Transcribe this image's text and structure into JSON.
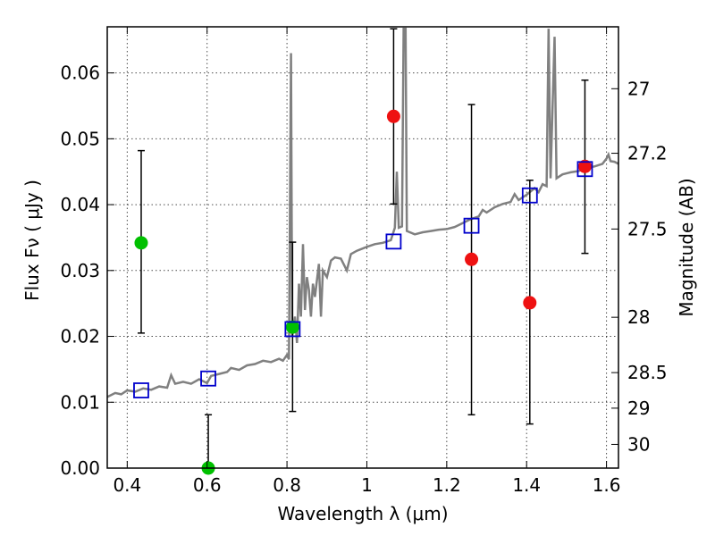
{
  "chart_data": {
    "type": "scatter",
    "xlabel": "Wavelength  λ (μm)",
    "ylabel": "Flux  Fν  ( μJy )",
    "y2label": "Magnitude (AB)",
    "xlim": [
      0.35,
      1.63
    ],
    "ylim": [
      0.0,
      0.067
    ],
    "x_ticks": [
      0.4,
      0.6,
      0.8,
      1.0,
      1.2,
      1.4,
      1.6
    ],
    "x_tick_labels": [
      "0.4",
      "0.6",
      "0.8",
      "1",
      "1.2",
      "1.4",
      "1.6"
    ],
    "y_ticks": [
      0.0,
      0.01,
      0.02,
      0.03,
      0.04,
      0.05,
      0.06
    ],
    "y_tick_labels": [
      "0.00",
      "0.01",
      "0.02",
      "0.03",
      "0.04",
      "0.05",
      "0.06"
    ],
    "y2_ticks": [
      {
        "flux": 0.0576,
        "label": "27"
      },
      {
        "flux": 0.0478,
        "label": "27.2"
      },
      {
        "flux": 0.0363,
        "label": "27.5"
      },
      {
        "flux": 0.0229,
        "label": "28"
      },
      {
        "flux": 0.0145,
        "label": "28.5"
      },
      {
        "flux": 0.0091,
        "label": "29"
      },
      {
        "flux": 0.0036,
        "label": "30"
      }
    ],
    "grid": true,
    "colors": {
      "model": "#808080",
      "green_points": "#00c000",
      "red_points": "#ee1111",
      "squares": "#0000cc",
      "errorbars": "#000000"
    },
    "series": [
      {
        "marker": "circle",
        "color": "#00c000",
        "points": [
          {
            "x": 0.435,
            "y": 0.0342,
            "yerr_low": 0.0205,
            "yerr_high": 0.0482
          },
          {
            "x": 0.603,
            "y": 0.0,
            "yerr_low": 0.0,
            "yerr_high": 0.0081
          },
          {
            "x": 0.814,
            "y": 0.0214,
            "yerr_low": 0.0086,
            "yerr_high": 0.0343
          }
        ]
      },
      {
        "marker": "circle",
        "color": "#ee1111",
        "points": [
          {
            "x": 1.067,
            "y": 0.0534,
            "yerr_low": 0.0401,
            "yerr_high": 0.0667
          },
          {
            "x": 1.262,
            "y": 0.0317,
            "yerr_low": 0.0081,
            "yerr_high": 0.0552
          },
          {
            "x": 1.408,
            "y": 0.0251,
            "yerr_low": 0.0067,
            "yerr_high": 0.0437
          },
          {
            "x": 1.546,
            "y": 0.0458,
            "yerr_low": 0.0326,
            "yerr_high": 0.0589
          }
        ]
      },
      {
        "marker": "open-square",
        "color": "#0000cc",
        "points": [
          {
            "x": 0.435,
            "y": 0.0118
          },
          {
            "x": 0.603,
            "y": 0.0136
          },
          {
            "x": 0.814,
            "y": 0.0211
          },
          {
            "x": 1.067,
            "y": 0.0344
          },
          {
            "x": 1.262,
            "y": 0.0368
          },
          {
            "x": 1.408,
            "y": 0.0414
          },
          {
            "x": 1.546,
            "y": 0.0454
          }
        ]
      },
      {
        "marker": "line",
        "color": "#808080",
        "points": [
          {
            "x": 0.35,
            "y": 0.0108
          },
          {
            "x": 0.37,
            "y": 0.0114
          },
          {
            "x": 0.385,
            "y": 0.0112
          },
          {
            "x": 0.4,
            "y": 0.0118
          },
          {
            "x": 0.42,
            "y": 0.0116
          },
          {
            "x": 0.44,
            "y": 0.0121
          },
          {
            "x": 0.46,
            "y": 0.0119
          },
          {
            "x": 0.48,
            "y": 0.0124
          },
          {
            "x": 0.5,
            "y": 0.0122
          },
          {
            "x": 0.51,
            "y": 0.0141
          },
          {
            "x": 0.52,
            "y": 0.0128
          },
          {
            "x": 0.54,
            "y": 0.0131
          },
          {
            "x": 0.56,
            "y": 0.0128
          },
          {
            "x": 0.58,
            "y": 0.0135
          },
          {
            "x": 0.6,
            "y": 0.0129
          },
          {
            "x": 0.61,
            "y": 0.014
          },
          {
            "x": 0.63,
            "y": 0.0143
          },
          {
            "x": 0.65,
            "y": 0.0146
          },
          {
            "x": 0.66,
            "y": 0.0152
          },
          {
            "x": 0.68,
            "y": 0.0149
          },
          {
            "x": 0.7,
            "y": 0.0156
          },
          {
            "x": 0.72,
            "y": 0.0158
          },
          {
            "x": 0.74,
            "y": 0.0163
          },
          {
            "x": 0.76,
            "y": 0.0161
          },
          {
            "x": 0.78,
            "y": 0.0166
          },
          {
            "x": 0.79,
            "y": 0.0163
          },
          {
            "x": 0.8,
            "y": 0.0172
          },
          {
            "x": 0.805,
            "y": 0.0165
          },
          {
            "x": 0.81,
            "y": 0.063
          },
          {
            "x": 0.813,
            "y": 0.02
          },
          {
            "x": 0.82,
            "y": 0.023
          },
          {
            "x": 0.825,
            "y": 0.019
          },
          {
            "x": 0.83,
            "y": 0.028
          },
          {
            "x": 0.835,
            "y": 0.023
          },
          {
            "x": 0.84,
            "y": 0.034
          },
          {
            "x": 0.845,
            "y": 0.024
          },
          {
            "x": 0.85,
            "y": 0.029
          },
          {
            "x": 0.855,
            "y": 0.027
          },
          {
            "x": 0.86,
            "y": 0.023
          },
          {
            "x": 0.865,
            "y": 0.028
          },
          {
            "x": 0.87,
            "y": 0.026
          },
          {
            "x": 0.88,
            "y": 0.031
          },
          {
            "x": 0.885,
            "y": 0.023
          },
          {
            "x": 0.89,
            "y": 0.03
          },
          {
            "x": 0.9,
            "y": 0.029
          },
          {
            "x": 0.91,
            "y": 0.0315
          },
          {
            "x": 0.92,
            "y": 0.032
          },
          {
            "x": 0.935,
            "y": 0.0318
          },
          {
            "x": 0.95,
            "y": 0.03
          },
          {
            "x": 0.96,
            "y": 0.0325
          },
          {
            "x": 0.975,
            "y": 0.033
          },
          {
            "x": 1.0,
            "y": 0.0336
          },
          {
            "x": 1.02,
            "y": 0.034
          },
          {
            "x": 1.04,
            "y": 0.0342
          },
          {
            "x": 1.06,
            "y": 0.0346
          },
          {
            "x": 1.07,
            "y": 0.0365
          },
          {
            "x": 1.075,
            "y": 0.045
          },
          {
            "x": 1.08,
            "y": 0.0365
          },
          {
            "x": 1.088,
            "y": 0.0367
          },
          {
            "x": 1.092,
            "y": 0.0667
          },
          {
            "x": 1.097,
            "y": 0.0667
          },
          {
            "x": 1.1,
            "y": 0.036
          },
          {
            "x": 1.12,
            "y": 0.0355
          },
          {
            "x": 1.14,
            "y": 0.0358
          },
          {
            "x": 1.16,
            "y": 0.036
          },
          {
            "x": 1.18,
            "y": 0.0362
          },
          {
            "x": 1.2,
            "y": 0.0363
          },
          {
            "x": 1.22,
            "y": 0.0366
          },
          {
            "x": 1.24,
            "y": 0.0372
          },
          {
            "x": 1.26,
            "y": 0.0378
          },
          {
            "x": 1.28,
            "y": 0.0382
          },
          {
            "x": 1.29,
            "y": 0.0392
          },
          {
            "x": 1.3,
            "y": 0.0388
          },
          {
            "x": 1.32,
            "y": 0.0396
          },
          {
            "x": 1.34,
            "y": 0.0401
          },
          {
            "x": 1.36,
            "y": 0.0404
          },
          {
            "x": 1.37,
            "y": 0.0416
          },
          {
            "x": 1.38,
            "y": 0.0407
          },
          {
            "x": 1.4,
            "y": 0.0415
          },
          {
            "x": 1.42,
            "y": 0.0425
          },
          {
            "x": 1.43,
            "y": 0.0419
          },
          {
            "x": 1.44,
            "y": 0.0431
          },
          {
            "x": 1.45,
            "y": 0.0428
          },
          {
            "x": 1.455,
            "y": 0.0667
          },
          {
            "x": 1.46,
            "y": 0.044
          },
          {
            "x": 1.47,
            "y": 0.0655
          },
          {
            "x": 1.475,
            "y": 0.044
          },
          {
            "x": 1.49,
            "y": 0.0446
          },
          {
            "x": 1.51,
            "y": 0.0449
          },
          {
            "x": 1.53,
            "y": 0.0451
          },
          {
            "x": 1.55,
            "y": 0.0456
          },
          {
            "x": 1.57,
            "y": 0.0458
          },
          {
            "x": 1.59,
            "y": 0.0462
          },
          {
            "x": 1.6,
            "y": 0.047
          },
          {
            "x": 1.605,
            "y": 0.0476
          },
          {
            "x": 1.61,
            "y": 0.0466
          },
          {
            "x": 1.62,
            "y": 0.0465
          },
          {
            "x": 1.63,
            "y": 0.0462
          }
        ]
      }
    ]
  }
}
